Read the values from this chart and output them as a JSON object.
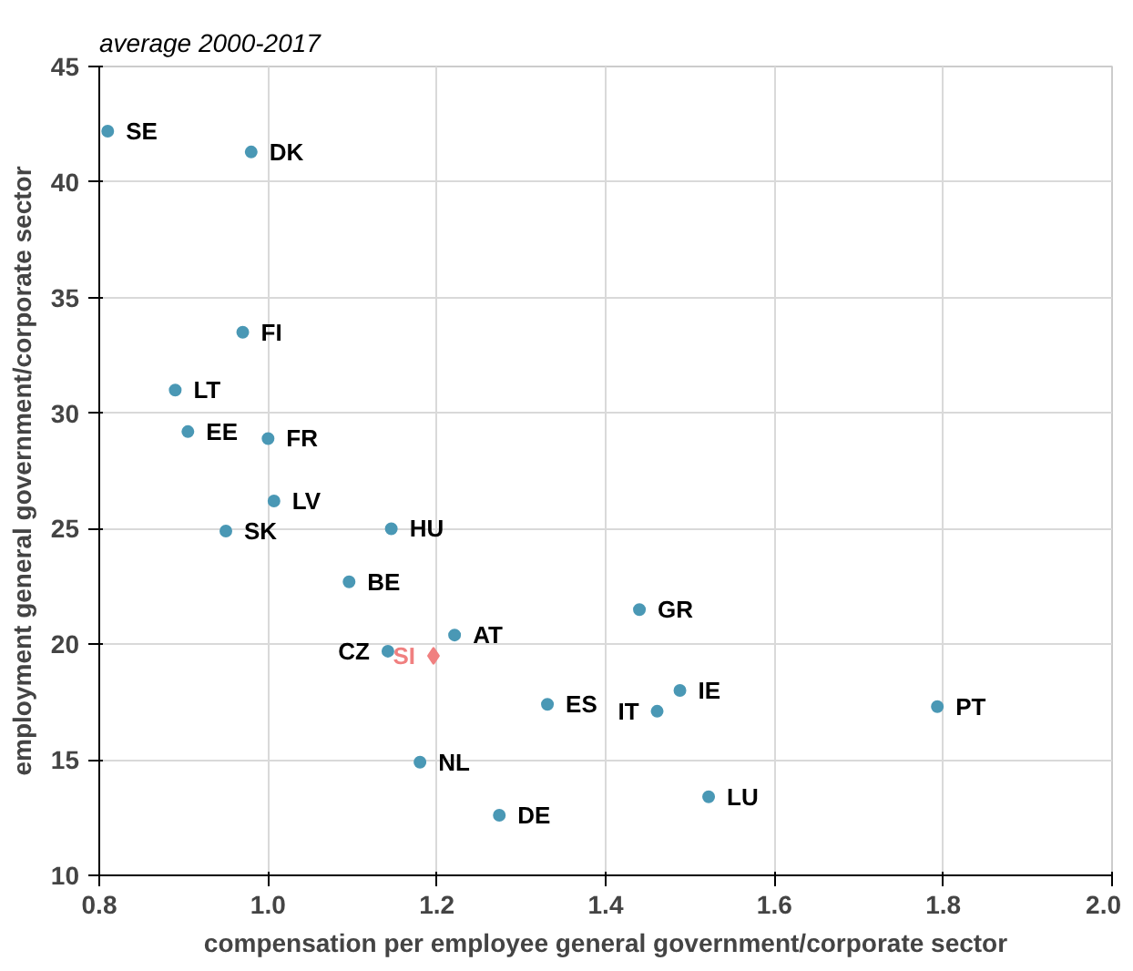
{
  "chart_data": {
    "type": "scatter",
    "subtitle": "average 2000-2017",
    "xlabel": "compensation per employee general government/corporate sector",
    "ylabel": "employment general government/corporate sector",
    "xlim": [
      0.8,
      2.0
    ],
    "xticks": [
      {
        "value": 0.8,
        "label": "0.8"
      },
      {
        "value": 1.0,
        "label": "1.0"
      },
      {
        "value": 1.2,
        "label": "1.2"
      },
      {
        "value": 1.4,
        "label": "1.4"
      },
      {
        "value": 1.6,
        "label": "1.6"
      },
      {
        "value": 1.8,
        "label": "1.8"
      },
      {
        "value": 2.0,
        "label": "2.0"
      }
    ],
    "ylim": [
      10,
      45
    ],
    "yticks": [
      10,
      15,
      20,
      25,
      30,
      35,
      40,
      45
    ],
    "grid": true,
    "marker": "circle",
    "series": [
      {
        "color": "#4a98b5",
        "x": [
          0.81,
          0.98,
          0.97,
          0.89,
          0.905,
          1.0,
          1.007,
          0.95,
          1.146,
          1.096,
          1.221,
          1.142,
          1.44,
          1.488,
          1.331,
          1.461,
          1.793,
          1.18,
          1.274,
          1.522
        ],
        "values": [
          42.2,
          41.3,
          33.5,
          31.0,
          29.2,
          28.9,
          26.2,
          24.9,
          25.0,
          22.7,
          20.4,
          19.7,
          21.5,
          18.0,
          17.4,
          17.1,
          17.3,
          14.9,
          12.6,
          13.4
        ]
      },
      {
        "color": "#f08080",
        "marker": "diamond",
        "x": [
          1.196
        ],
        "values": [
          19.5
        ]
      }
    ],
    "annotations": [
      {
        "text": "SE",
        "x": 0.81,
        "y": 42.2
      },
      {
        "text": "DK",
        "x": 0.98,
        "y": 41.3
      },
      {
        "text": "FI",
        "x": 0.97,
        "y": 33.5
      },
      {
        "text": "LT",
        "x": 0.89,
        "y": 31.0
      },
      {
        "text": "EE",
        "x": 0.905,
        "y": 29.2
      },
      {
        "text": "FR",
        "x": 1.0,
        "y": 28.9
      },
      {
        "text": "LV",
        "x": 1.007,
        "y": 26.2
      },
      {
        "text": "SK",
        "x": 0.95,
        "y": 24.9
      },
      {
        "text": "HU",
        "x": 1.146,
        "y": 25.0
      },
      {
        "text": "BE",
        "x": 1.096,
        "y": 22.7
      },
      {
        "text": "AT",
        "x": 1.221,
        "y": 20.4
      },
      {
        "text": "CZ",
        "x": 1.142,
        "y": 19.7
      },
      {
        "text": "SI",
        "x": 1.196,
        "y": 19.5
      },
      {
        "text": "GR",
        "x": 1.44,
        "y": 21.5
      },
      {
        "text": "IE",
        "x": 1.488,
        "y": 18.0
      },
      {
        "text": "ES",
        "x": 1.331,
        "y": 17.4
      },
      {
        "text": "IT",
        "x": 1.461,
        "y": 17.1
      },
      {
        "text": "PT",
        "x": 1.793,
        "y": 17.3
      },
      {
        "text": "NL",
        "x": 1.18,
        "y": 14.9
      },
      {
        "text": "DE",
        "x": 1.274,
        "y": 12.6
      },
      {
        "text": "LU",
        "x": 1.522,
        "y": 13.4
      }
    ]
  }
}
